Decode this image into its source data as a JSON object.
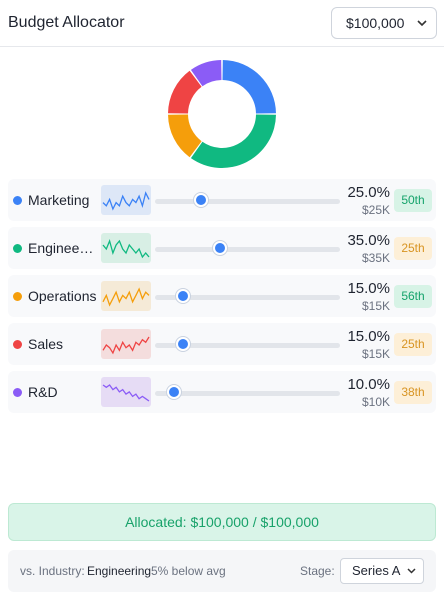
{
  "header": {
    "title": "Budget Allocator",
    "budget": "$100,000"
  },
  "chart_data": {
    "type": "pie",
    "style": "donut",
    "categories": [
      "Marketing",
      "Engineering",
      "Operations",
      "Sales",
      "R&D"
    ],
    "values": [
      25,
      35,
      15,
      15,
      10
    ],
    "colors": [
      "#3b82f6",
      "#10b981",
      "#f59e0b",
      "#ef4444",
      "#8b5cf6"
    ]
  },
  "allocations": [
    {
      "name": "Marketing",
      "label": "Marketing",
      "color": "#3b82f6",
      "share": 0.25,
      "percent": "25.0%",
      "amount": "$25K",
      "percentile": "50th",
      "badge": "green",
      "spark_bg": "#dde7f7",
      "trend": [
        6,
        5,
        7,
        4,
        6,
        5,
        8,
        6,
        5,
        7,
        6,
        8,
        5,
        9,
        7
      ]
    },
    {
      "name": "Engineering",
      "label": "Engineer…",
      "color": "#10b981",
      "share": 0.35,
      "percent": "35.0%",
      "amount": "$35K",
      "percentile": "25th",
      "badge": "amber",
      "spark_bg": "#d8efe5",
      "trend": [
        8,
        7,
        9,
        6,
        8,
        9,
        7,
        6,
        8,
        7,
        6,
        7,
        5,
        6,
        5
      ]
    },
    {
      "name": "Operations",
      "label": "Operations",
      "color": "#f59e0b",
      "share": 0.15,
      "percent": "15.0%",
      "amount": "$15K",
      "percentile": "56th",
      "badge": "green",
      "spark_bg": "#f5ead7",
      "trend": [
        5,
        7,
        4,
        6,
        8,
        5,
        7,
        6,
        8,
        5,
        7,
        9,
        6,
        8,
        7
      ]
    },
    {
      "name": "Sales",
      "label": "Sales",
      "color": "#ef4444",
      "share": 0.15,
      "percent": "15.0%",
      "amount": "$15K",
      "percentile": "25th",
      "badge": "amber",
      "spark_bg": "#f4dddd",
      "trend": [
        4,
        6,
        5,
        3,
        6,
        4,
        7,
        5,
        6,
        4,
        7,
        6,
        8,
        7,
        9
      ]
    },
    {
      "name": "R&D",
      "label": "R&D",
      "color": "#8b5cf6",
      "share": 0.1,
      "percent": "10.0%",
      "amount": "$10K",
      "percentile": "38th",
      "badge": "amber",
      "spark_bg": "#e6dcf5",
      "trend": [
        9,
        8,
        9,
        7,
        8,
        6,
        7,
        5,
        6,
        4,
        5,
        3,
        4,
        3,
        2
      ]
    }
  ],
  "total": {
    "text": "Allocated: $100,000 / $100,000"
  },
  "footer": {
    "vs_label": "vs. Industry:",
    "category": "Engineering",
    "delta": "5% below avg",
    "stage_label": "Stage:",
    "stage": "Series A"
  }
}
